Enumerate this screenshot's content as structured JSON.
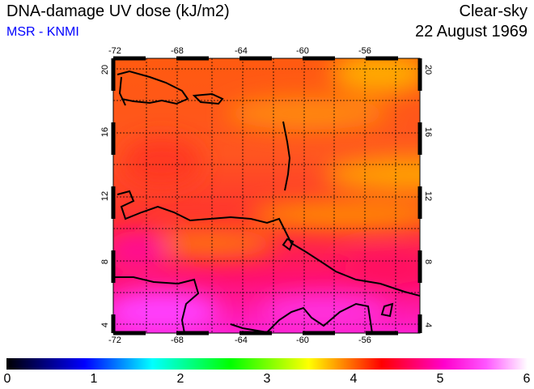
{
  "header": {
    "title": "DNA-damage UV dose (kJ/m2)",
    "source": "MSR - KNMI",
    "sky": "Clear-sky",
    "date": "22 August 1969"
  },
  "map": {
    "lon_ticks": [
      "-72",
      "-68",
      "-64",
      "-60",
      "-56"
    ],
    "lat_ticks": [
      "20",
      "16",
      "12",
      "8",
      "4"
    ],
    "lon_range": [
      -72.1,
      -52.4
    ],
    "lat_range": [
      3.4,
      20.7
    ]
  },
  "colorbar": {
    "labels": [
      "0",
      "1",
      "2",
      "3",
      "4",
      "5",
      "6"
    ],
    "range": [
      0,
      6
    ]
  }
}
